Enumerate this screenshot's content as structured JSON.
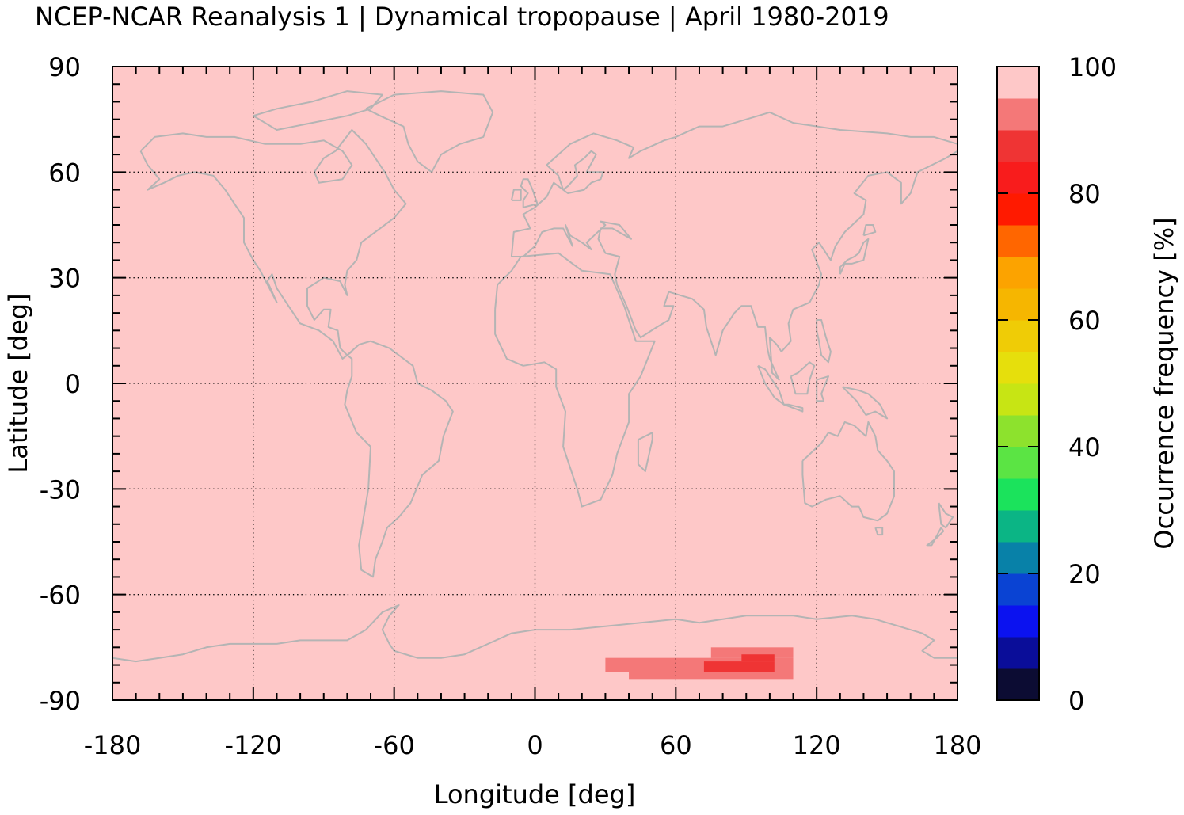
{
  "chart_data": {
    "type": "heatmap",
    "title": "NCEP-NCAR Reanalysis 1 | Dynamical tropopause | April 1980-2019",
    "xlabel": "Longitude [deg]",
    "ylabel": "Latitude [deg]",
    "xlim": [
      -180,
      180
    ],
    "ylim": [
      -90,
      90
    ],
    "x_ticks": [
      -180,
      -120,
      -60,
      0,
      60,
      120,
      180
    ],
    "y_ticks": [
      90,
      60,
      30,
      0,
      -30,
      -60,
      -90
    ],
    "x_tick_labels": [
      "-180",
      "-120",
      "-60",
      "0",
      "60",
      "120",
      "180"
    ],
    "y_tick_labels": [
      "90",
      "60",
      "30",
      "0",
      "-30",
      "-60",
      "-90"
    ],
    "grid": true,
    "background_value": 100,
    "coastlines": true,
    "coastline_color": "#b4b4b4",
    "colorbar": {
      "label": "Occurrence frequency [%]",
      "range": [
        0,
        100
      ],
      "tick_values": [
        0,
        20,
        40,
        60,
        80,
        100
      ],
      "tick_labels": [
        "0",
        "20",
        "40",
        "60",
        "80",
        "100"
      ],
      "bins": [
        {
          "from": 0,
          "to": 5,
          "color": "#0c0c33"
        },
        {
          "from": 5,
          "to": 10,
          "color": "#0a0d99"
        },
        {
          "from": 10,
          "to": 15,
          "color": "#0b12f0"
        },
        {
          "from": 15,
          "to": 20,
          "color": "#0a43d3"
        },
        {
          "from": 20,
          "to": 25,
          "color": "#0881a8"
        },
        {
          "from": 25,
          "to": 30,
          "color": "#0bb585"
        },
        {
          "from": 30,
          "to": 35,
          "color": "#1be35c"
        },
        {
          "from": 35,
          "to": 40,
          "color": "#5be444"
        },
        {
          "from": 40,
          "to": 45,
          "color": "#8de22d"
        },
        {
          "from": 45,
          "to": 50,
          "color": "#c7e514"
        },
        {
          "from": 50,
          "to": 55,
          "color": "#e6df0c"
        },
        {
          "from": 55,
          "to": 60,
          "color": "#efcc06"
        },
        {
          "from": 60,
          "to": 65,
          "color": "#f6b600"
        },
        {
          "from": 65,
          "to": 70,
          "color": "#fca300"
        },
        {
          "from": 70,
          "to": 75,
          "color": "#ff6600"
        },
        {
          "from": 75,
          "to": 80,
          "color": "#ff1a00"
        },
        {
          "from": 80,
          "to": 85,
          "color": "#f81c1c"
        },
        {
          "from": 85,
          "to": 90,
          "color": "#ef3434"
        },
        {
          "from": 90,
          "to": 95,
          "color": "#f47878"
        },
        {
          "from": 95,
          "to": 100,
          "color": "#fec8c8"
        }
      ]
    },
    "anomaly_cells": [
      {
        "lon": [
          30,
          110
        ],
        "lat": [
          -78,
          -82
        ],
        "value": 92
      },
      {
        "lon": [
          40,
          110
        ],
        "lat": [
          -82,
          -84
        ],
        "value": 92
      },
      {
        "lon": [
          75,
          110
        ],
        "lat": [
          -75,
          -78
        ],
        "value": 92
      },
      {
        "lon": [
          72,
          102
        ],
        "lat": [
          -79,
          -82
        ],
        "value": 87
      },
      {
        "lon": [
          88,
          102
        ],
        "lat": [
          -77,
          -79
        ],
        "value": 87
      }
    ]
  }
}
